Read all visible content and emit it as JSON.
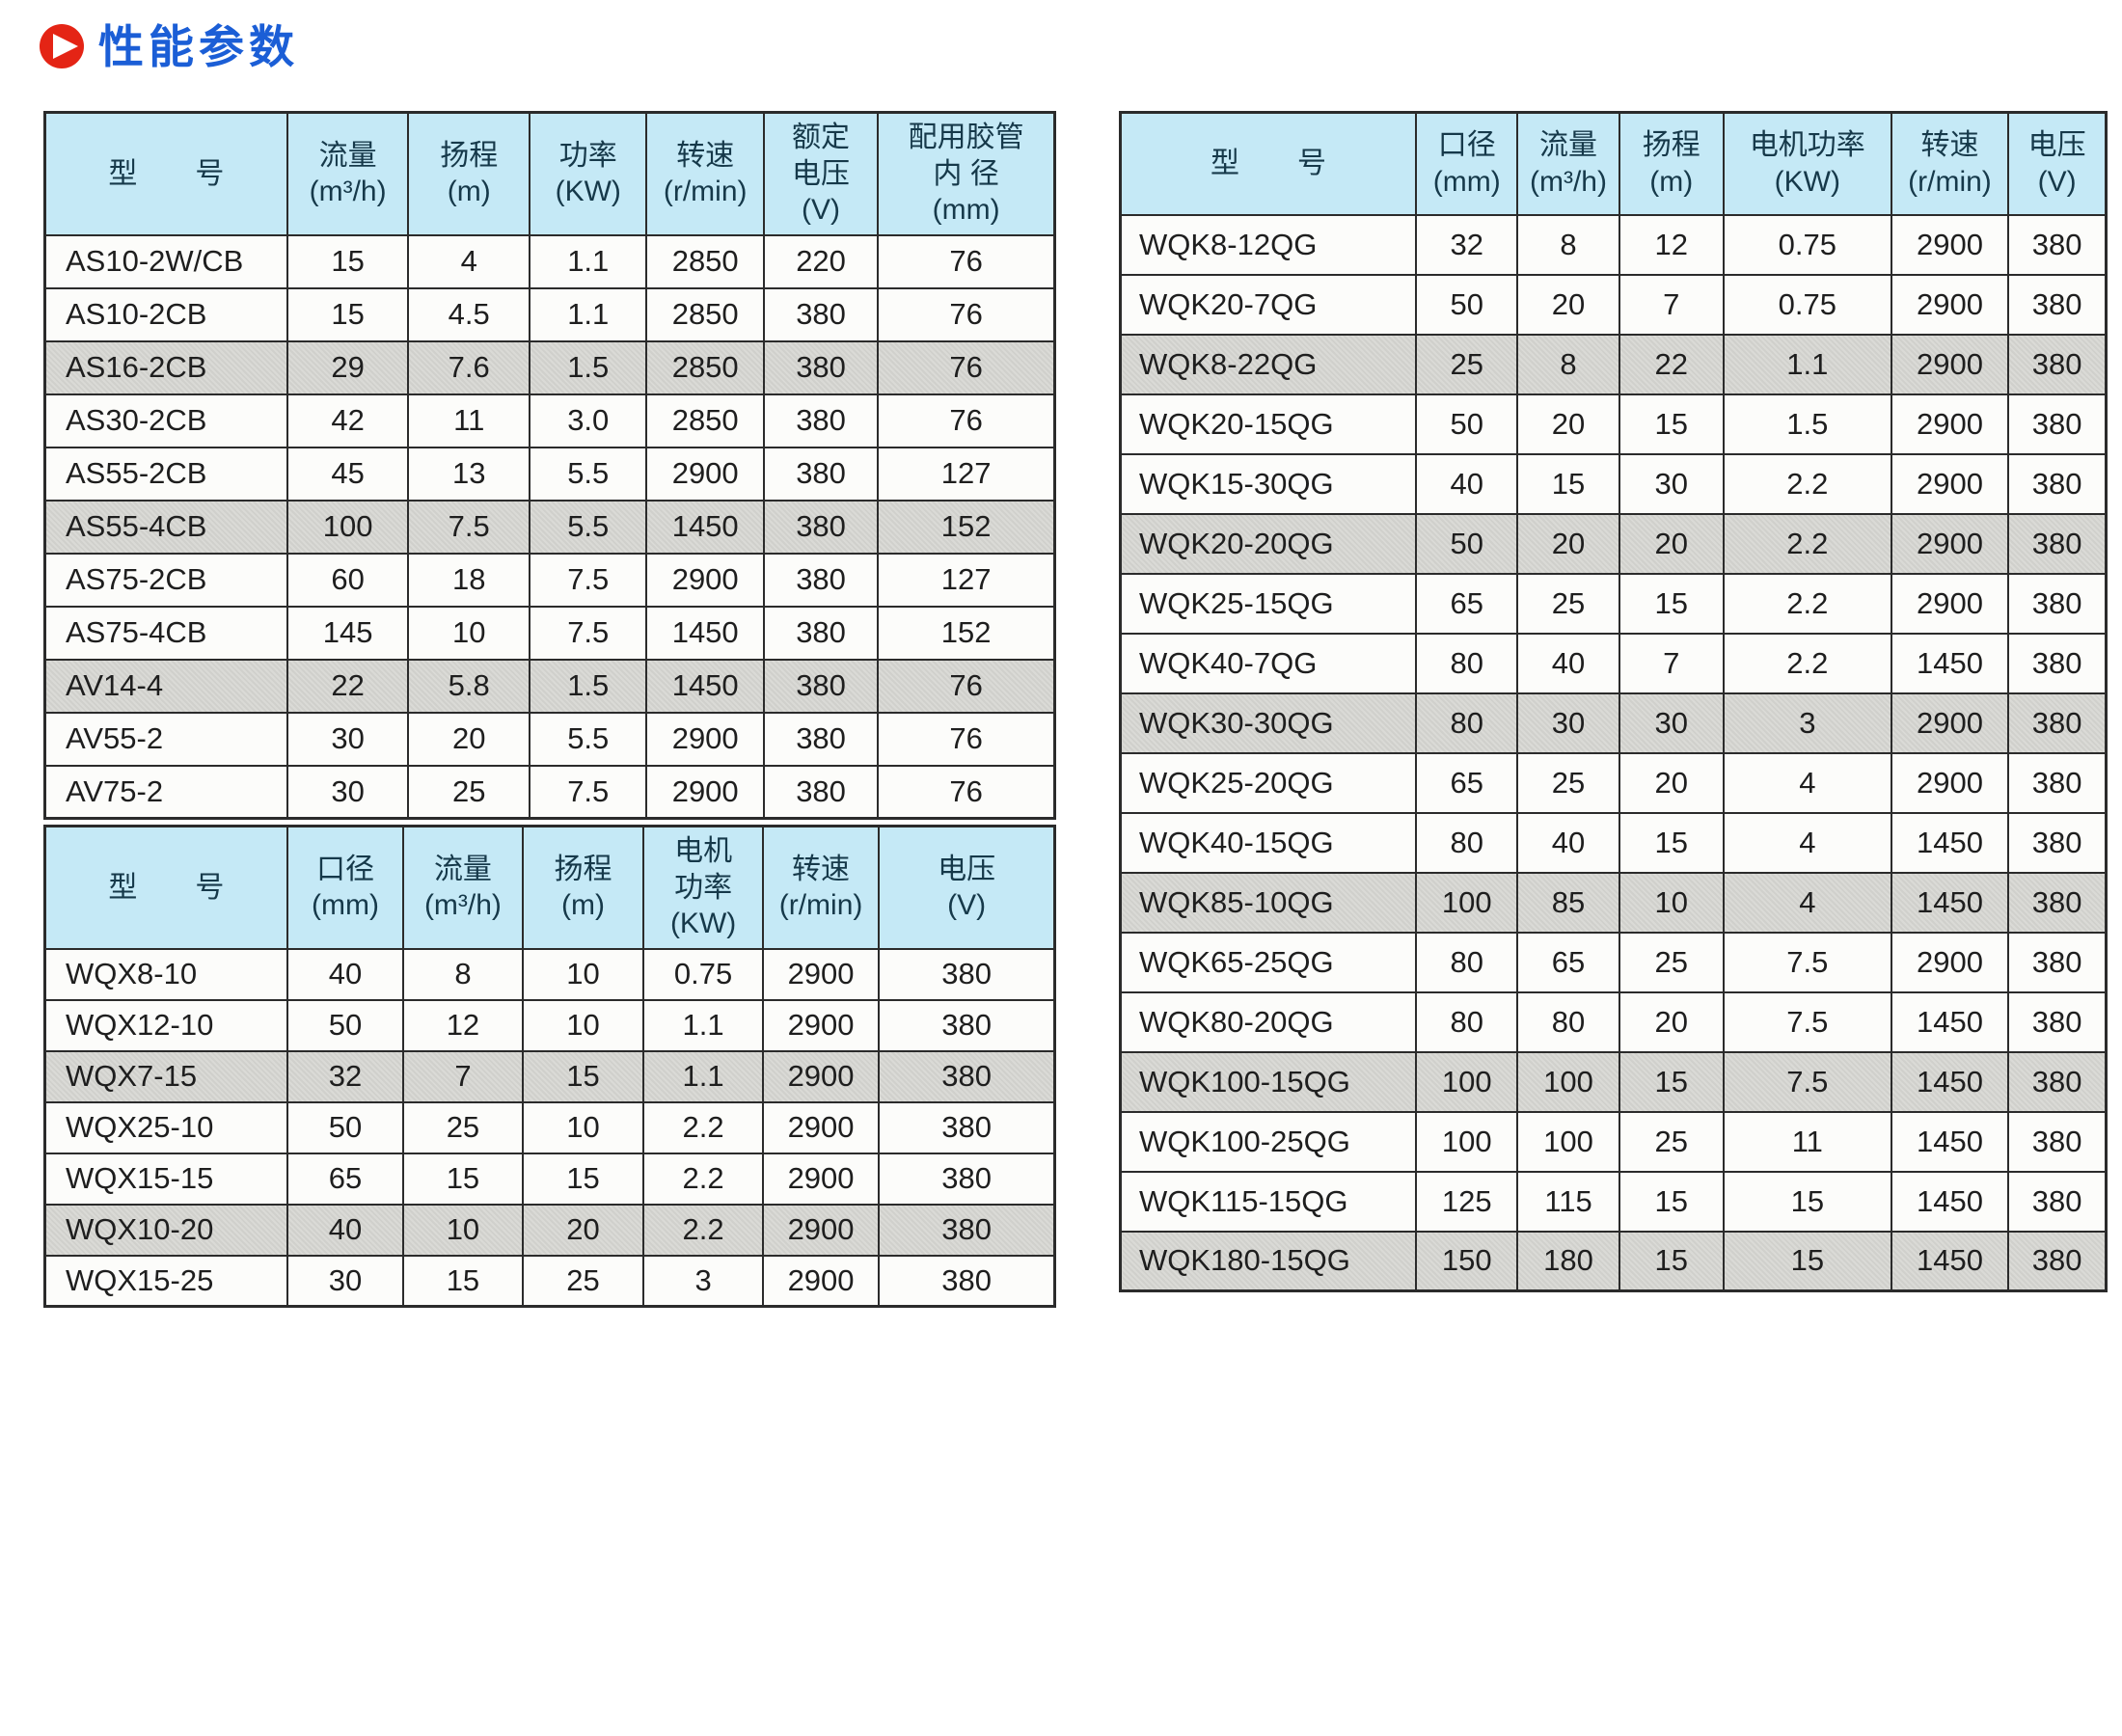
{
  "page": {
    "title": "性能参数"
  },
  "colors": {
    "title_blue": "#1b5ed6",
    "icon_red": "#e42415",
    "header_bg": "#c5e9f6",
    "header_text": "#16394a",
    "row_bg": "#fcfcfa",
    "shaded_bg": "#d9d9d5",
    "border": "#2b2b2b",
    "cell_text": "#1e1e1e"
  },
  "tables": [
    {
      "name": "AS-AV-series",
      "columns": [
        "型　　号",
        "流量\n(m³/h)",
        "扬程\n(m)",
        "功率\n(KW)",
        "转速\n(r/min)",
        "额定\n电压\n(V)",
        "配用胶管\n内 径\n(mm)"
      ],
      "rows": [
        [
          "AS10-2W/CB",
          "15",
          "4",
          "1.1",
          "2850",
          "220",
          "76"
        ],
        [
          "AS10-2CB",
          "15",
          "4.5",
          "1.1",
          "2850",
          "380",
          "76"
        ],
        [
          "AS16-2CB",
          "29",
          "7.6",
          "1.5",
          "2850",
          "380",
          "76"
        ],
        [
          "AS30-2CB",
          "42",
          "11",
          "3.0",
          "2850",
          "380",
          "76"
        ],
        [
          "AS55-2CB",
          "45",
          "13",
          "5.5",
          "2900",
          "380",
          "127"
        ],
        [
          "AS55-4CB",
          "100",
          "7.5",
          "5.5",
          "1450",
          "380",
          "152"
        ],
        [
          "AS75-2CB",
          "60",
          "18",
          "7.5",
          "2900",
          "380",
          "127"
        ],
        [
          "AS75-4CB",
          "145",
          "10",
          "7.5",
          "1450",
          "380",
          "152"
        ],
        [
          "AV14-4",
          "22",
          "5.8",
          "1.5",
          "1450",
          "380",
          "76"
        ],
        [
          "AV55-2",
          "30",
          "20",
          "5.5",
          "2900",
          "380",
          "76"
        ],
        [
          "AV75-2",
          "30",
          "25",
          "7.5",
          "2900",
          "380",
          "76"
        ]
      ],
      "shaded_rows": [
        2,
        5,
        8
      ]
    },
    {
      "name": "WQX-series",
      "columns": [
        "型　　号",
        "口径\n(mm)",
        "流量\n(m³/h)",
        "扬程\n(m)",
        "电机\n功率\n(KW)",
        "转速\n(r/min)",
        "电压\n(V)"
      ],
      "rows": [
        [
          "WQX8-10",
          "40",
          "8",
          "10",
          "0.75",
          "2900",
          "380"
        ],
        [
          "WQX12-10",
          "50",
          "12",
          "10",
          "1.1",
          "2900",
          "380"
        ],
        [
          "WQX7-15",
          "32",
          "7",
          "15",
          "1.1",
          "2900",
          "380"
        ],
        [
          "WQX25-10",
          "50",
          "25",
          "10",
          "2.2",
          "2900",
          "380"
        ],
        [
          "WQX15-15",
          "65",
          "15",
          "15",
          "2.2",
          "2900",
          "380"
        ],
        [
          "WQX10-20",
          "40",
          "10",
          "20",
          "2.2",
          "2900",
          "380"
        ],
        [
          "WQX15-25",
          "30",
          "15",
          "25",
          "3",
          "2900",
          "380"
        ]
      ],
      "shaded_rows": [
        2,
        5
      ]
    },
    {
      "name": "WQK-series",
      "columns": [
        "型　　号",
        "口径\n(mm)",
        "流量\n(m³/h)",
        "扬程\n(m)",
        "电机功率\n(KW)",
        "转速\n(r/min)",
        "电压\n(V)"
      ],
      "rows": [
        [
          "WQK8-12QG",
          "32",
          "8",
          "12",
          "0.75",
          "2900",
          "380"
        ],
        [
          "WQK20-7QG",
          "50",
          "20",
          "7",
          "0.75",
          "2900",
          "380"
        ],
        [
          "WQK8-22QG",
          "25",
          "8",
          "22",
          "1.1",
          "2900",
          "380"
        ],
        [
          "WQK20-15QG",
          "50",
          "20",
          "15",
          "1.5",
          "2900",
          "380"
        ],
        [
          "WQK15-30QG",
          "40",
          "15",
          "30",
          "2.2",
          "2900",
          "380"
        ],
        [
          "WQK20-20QG",
          "50",
          "20",
          "20",
          "2.2",
          "2900",
          "380"
        ],
        [
          "WQK25-15QG",
          "65",
          "25",
          "15",
          "2.2",
          "2900",
          "380"
        ],
        [
          "WQK40-7QG",
          "80",
          "40",
          "7",
          "2.2",
          "1450",
          "380"
        ],
        [
          "WQK30-30QG",
          "80",
          "30",
          "30",
          "3",
          "2900",
          "380"
        ],
        [
          "WQK25-20QG",
          "65",
          "25",
          "20",
          "4",
          "2900",
          "380"
        ],
        [
          "WQK40-15QG",
          "80",
          "40",
          "15",
          "4",
          "1450",
          "380"
        ],
        [
          "WQK85-10QG",
          "100",
          "85",
          "10",
          "4",
          "1450",
          "380"
        ],
        [
          "WQK65-25QG",
          "80",
          "65",
          "25",
          "7.5",
          "2900",
          "380"
        ],
        [
          "WQK80-20QG",
          "80",
          "80",
          "20",
          "7.5",
          "1450",
          "380"
        ],
        [
          "WQK100-15QG",
          "100",
          "100",
          "15",
          "7.5",
          "1450",
          "380"
        ],
        [
          "WQK100-25QG",
          "100",
          "100",
          "25",
          "11",
          "1450",
          "380"
        ],
        [
          "WQK115-15QG",
          "125",
          "115",
          "15",
          "15",
          "1450",
          "380"
        ],
        [
          "WQK180-15QG",
          "150",
          "180",
          "15",
          "15",
          "1450",
          "380"
        ]
      ],
      "shaded_rows": [
        2,
        5,
        8,
        11,
        14,
        17
      ]
    }
  ]
}
